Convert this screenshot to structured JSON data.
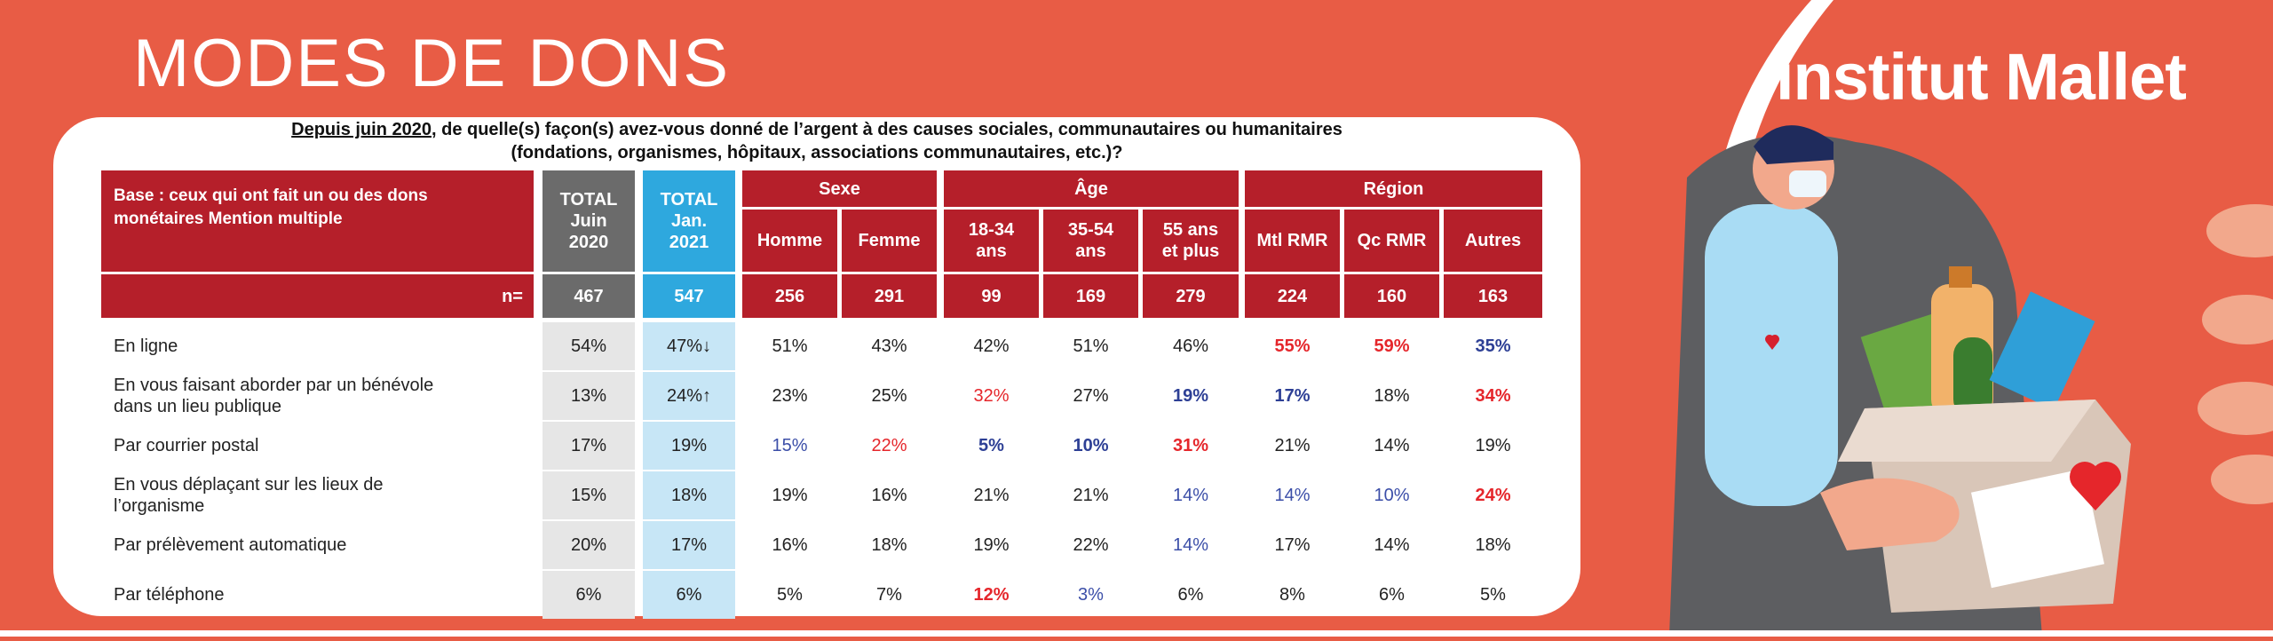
{
  "page_title": "MODES DE DONS",
  "brand": "institut Mallet",
  "question": {
    "underlined": "Depuis juin 2020",
    "line1_rest": ", de quelle(s) façon(s) avez-vous donné de l’argent à des causes sociales, communautaires ou humanitaires",
    "line2": "(fondations, organismes, hôpitaux, associations communautaires, etc.)?"
  },
  "table": {
    "base_label": "Base : ceux qui ont fait un ou des dons monétaires Mention multiple",
    "n_label": "n=",
    "total_2020": "TOTAL Juin 2020",
    "total_2021": "TOTAL Jan. 2021",
    "groups": [
      "Sexe",
      "Âge",
      "Région"
    ],
    "subcols": [
      "Homme",
      "Femme",
      "18-34 ans",
      "35-54 ans",
      "55 ans et plus",
      "Mtl RMR",
      "Qc RMR",
      "Autres"
    ],
    "n_values": [
      "467",
      "547",
      "256",
      "291",
      "99",
      "169",
      "279",
      "224",
      "160",
      "163"
    ],
    "rows": [
      {
        "label": "En ligne",
        "values": [
          "54%",
          "47%↓",
          "51%",
          "43%",
          "42%",
          "51%",
          "46%",
          "55%",
          "59%",
          "35%"
        ]
      },
      {
        "label": "En vous faisant aborder par un bénévole dans un lieu publique",
        "values": [
          "13%",
          "24%↑",
          "23%",
          "25%",
          "32%",
          "27%",
          "19%",
          "17%",
          "18%",
          "34%"
        ]
      },
      {
        "label": "Par courrier postal",
        "values": [
          "17%",
          "19%",
          "15%",
          "22%",
          "5%",
          "10%",
          "31%",
          "21%",
          "14%",
          "19%"
        ]
      },
      {
        "label": "En vous déplaçant sur les lieux de l’organisme",
        "values": [
          "15%",
          "18%",
          "19%",
          "16%",
          "21%",
          "21%",
          "14%",
          "14%",
          "10%",
          "24%"
        ]
      },
      {
        "label": "Par prélèvement automatique",
        "values": [
          "20%",
          "17%",
          "16%",
          "18%",
          "19%",
          "22%",
          "14%",
          "17%",
          "14%",
          "18%"
        ]
      },
      {
        "label": "Par téléphone",
        "values": [
          "6%",
          "6%",
          "5%",
          "7%",
          "12%",
          "3%",
          "6%",
          "8%",
          "6%",
          "5%"
        ]
      }
    ],
    "styles": [
      [
        "",
        "",
        "",
        "",
        "",
        "",
        "",
        "red",
        "red",
        "blu"
      ],
      [
        "",
        "",
        "",
        "",
        "redl",
        "",
        "blu",
        "blu",
        "",
        "red"
      ],
      [
        "",
        "",
        "blul",
        "redl",
        "blu",
        "blu",
        "red",
        "",
        "",
        ""
      ],
      [
        "",
        "",
        "",
        "",
        "",
        "",
        "blul",
        "blul",
        "blul",
        "red"
      ],
      [
        "",
        "",
        "",
        "",
        "",
        "",
        "blul",
        "",
        "",
        ""
      ],
      [
        "",
        "",
        "",
        "",
        "red",
        "blul",
        "",
        "",
        "",
        ""
      ]
    ]
  },
  "colors": {
    "background": "#e85c45",
    "header_red": "#b51f2a",
    "grey": "#6b6b6b",
    "blue": "#2ea8de",
    "highlight_red": "#e5262b",
    "highlight_blue": "#2d3f95"
  }
}
